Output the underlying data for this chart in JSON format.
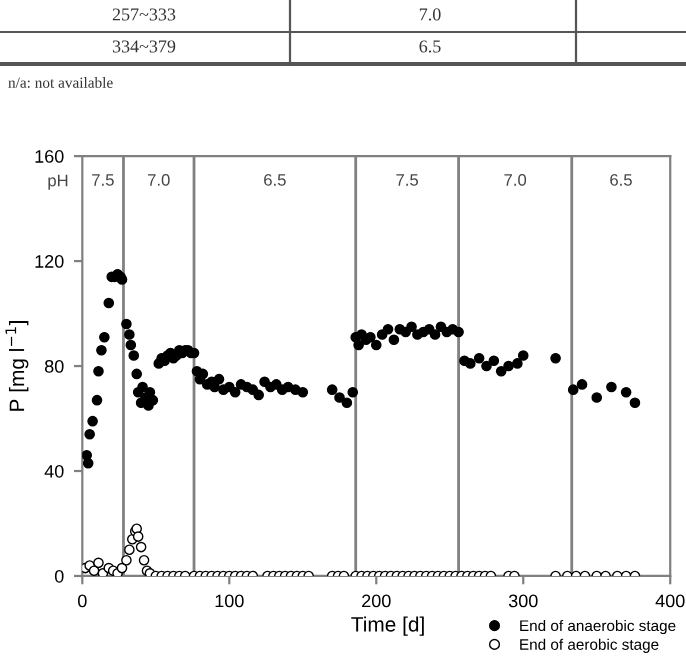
{
  "chart_data": {
    "type": "scatter",
    "xlabel": "Time [d]",
    "ylabel": "P [mg l$^{−1}$]",
    "xlim": [
      0,
      400
    ],
    "xticks": [
      0,
      100,
      200,
      300,
      400
    ],
    "ylim": [
      0,
      160
    ],
    "yticks": [
      0,
      40,
      80,
      120,
      160
    ],
    "grid": false,
    "legend": "bottom right",
    "marker": "circle",
    "series": [
      {
        "name": "End of anaerobic stage",
        "color": "#000000",
        "x": [
          3,
          4,
          5,
          7,
          10,
          11,
          13,
          15,
          18,
          20,
          22,
          24,
          26,
          27,
          30,
          32,
          33,
          35,
          37,
          38,
          40,
          41,
          43,
          45,
          46,
          48,
          52,
          54,
          56,
          58,
          60,
          62,
          64,
          66,
          68,
          70,
          72,
          74,
          76,
          78,
          80,
          82,
          85,
          88,
          90,
          93,
          96,
          100,
          104,
          108,
          112,
          116,
          120,
          124,
          128,
          132,
          136,
          140,
          145,
          150,
          170,
          175,
          180,
          184,
          186,
          188,
          190,
          193,
          196,
          200,
          204,
          208,
          212,
          216,
          220,
          224,
          228,
          232,
          236,
          240,
          244,
          248,
          252,
          256,
          260,
          264,
          270,
          275,
          280,
          285,
          290,
          296,
          300,
          322,
          334,
          340,
          350,
          360,
          370,
          376
        ],
        "values": [
          46,
          43,
          54,
          59,
          67,
          78,
          86,
          91,
          104,
          114,
          114,
          115,
          114,
          113,
          96,
          92,
          88,
          84,
          77,
          70,
          66,
          72,
          68,
          65,
          70,
          67,
          81,
          83,
          82,
          84,
          85,
          83,
          84,
          86,
          85,
          86,
          86,
          85,
          85,
          78,
          75,
          77,
          73,
          74,
          72,
          75,
          71,
          72,
          70,
          73,
          72,
          71,
          69,
          74,
          72,
          73,
          71,
          72,
          71,
          70,
          71,
          68,
          66,
          70,
          91,
          88,
          92,
          90,
          91,
          88,
          92,
          94,
          90,
          94,
          93,
          95,
          92,
          93,
          94,
          92,
          95,
          93,
          94,
          93,
          82,
          81,
          83,
          80,
          82,
          78,
          80,
          81,
          84,
          83,
          71,
          73,
          68,
          72,
          70,
          66
        ]
      },
      {
        "name": "End of aerobic stage",
        "color": "#ffffff",
        "x": [
          2,
          5,
          8,
          11,
          14,
          18,
          21,
          24,
          27,
          30,
          32,
          34,
          36,
          37,
          38,
          40,
          42,
          44,
          46,
          50,
          54,
          58,
          62,
          66,
          70,
          76,
          80,
          84,
          88,
          92,
          96,
          100,
          104,
          108,
          112,
          116,
          126,
          130,
          134,
          138,
          142,
          146,
          150,
          154,
          170,
          174,
          178,
          186,
          190,
          194,
          198,
          202,
          206,
          210,
          214,
          218,
          222,
          226,
          230,
          234,
          238,
          242,
          246,
          250,
          254,
          258,
          262,
          266,
          270,
          274,
          278,
          290,
          294,
          322,
          330,
          336,
          342,
          350,
          356,
          364,
          370,
          376
        ],
        "values": [
          3,
          4,
          2,
          5,
          1,
          3,
          2,
          1,
          3,
          6,
          10,
          14,
          17,
          18,
          15,
          11,
          6,
          2,
          1,
          0,
          0,
          0,
          0,
          0,
          0,
          0,
          0,
          0,
          0,
          0,
          0,
          0,
          0,
          0,
          0,
          0,
          0,
          0,
          0,
          0,
          0,
          0,
          0,
          0,
          0,
          0,
          0,
          0,
          0,
          0,
          0,
          0,
          0,
          0,
          0,
          0,
          0,
          0,
          0,
          0,
          0,
          0,
          0,
          0,
          0,
          0,
          0,
          0,
          0,
          0,
          0,
          0,
          0,
          0,
          0,
          0,
          0,
          0,
          0,
          0,
          0,
          0
        ]
      }
    ],
    "ref_lines": [
      {
        "axis": "x",
        "value": 28,
        "color": "#808080"
      },
      {
        "axis": "x",
        "value": 76,
        "color": "#808080"
      },
      {
        "axis": "x",
        "value": 186,
        "color": "#808080"
      },
      {
        "axis": "x",
        "value": 256,
        "color": "#808080"
      },
      {
        "axis": "x",
        "value": 333,
        "color": "#808080"
      }
    ],
    "annotations": [
      "257~333",
      "7.0",
      "334~379",
      "6.5",
      "n/a: not available",
      "pH",
      "7.5",
      "7.0",
      "6.5",
      "7.5",
      "7.0",
      "6.5"
    ]
  }
}
